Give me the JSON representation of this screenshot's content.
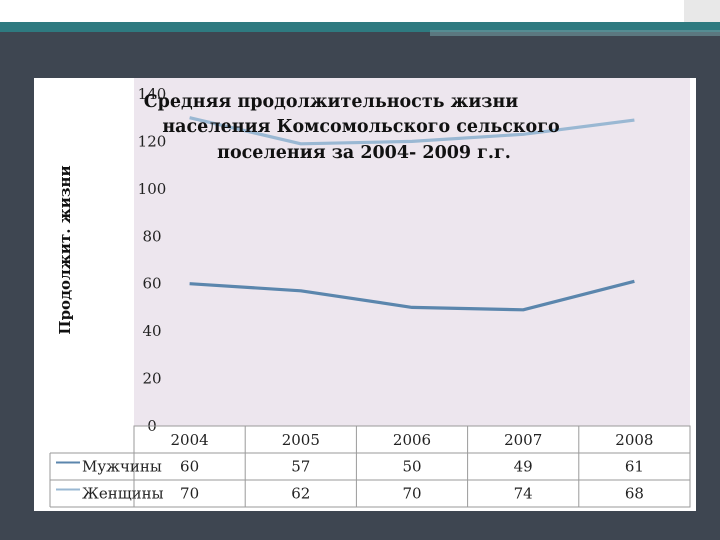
{
  "chart_data": {
    "type": "line",
    "title_lines": [
      "Средняя продолжительность жизни",
      "населения Комсомольского сельского",
      "поселения за 2004- 2009 г.г."
    ],
    "ylabel": "Продолжит. жизни",
    "xlabel": "",
    "categories": [
      "2004",
      "2005",
      "2006",
      "2007",
      "2008"
    ],
    "ylim": [
      0,
      140
    ],
    "yticks": [
      0,
      20,
      40,
      60,
      80,
      100,
      120,
      140
    ],
    "series": [
      {
        "name": "Мужчины",
        "values": [
          60,
          57,
          50,
          49,
          61
        ],
        "color": "#5b86ad"
      },
      {
        "name": "Женщины",
        "values": [
          70,
          62,
          70,
          74,
          68
        ],
        "color": "#9ab8d3"
      }
    ],
    "stacked": true,
    "data_table": true,
    "grid": false,
    "legend": "in data table"
  }
}
